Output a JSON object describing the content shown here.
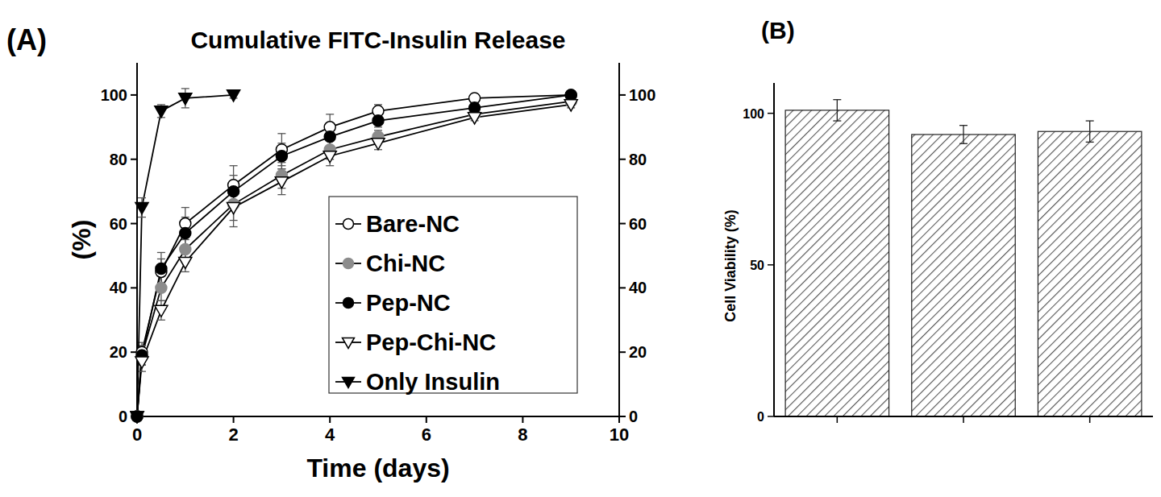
{
  "chart_data": [
    {
      "type": "line",
      "title": "Cumulative FITC-Insulin Release",
      "annotations": [
        "(A)"
      ],
      "x_label": "Time (days)",
      "y_label": "(%)",
      "x": [
        0,
        0.1,
        0.5,
        1,
        2,
        3,
        4,
        5,
        7,
        9
      ],
      "xlim": [
        0,
        10
      ],
      "xticks": [
        0,
        2,
        4,
        6,
        8,
        10
      ],
      "ylim": [
        0,
        110
      ],
      "yticks": [
        0,
        20,
        40,
        60,
        80,
        100
      ],
      "y2lim": [
        0,
        110
      ],
      "y2ticks": [
        0,
        20,
        40,
        60,
        80,
        100
      ],
      "legend": "lower right",
      "series": [
        {
          "name": "Bare-NC",
          "color": "#000000",
          "marker": "circle-open",
          "values": [
            0,
            20,
            45,
            60,
            72,
            83,
            90,
            95,
            99,
            100
          ],
          "errors": [
            0,
            3,
            4,
            5,
            6,
            5,
            4,
            2,
            1,
            1
          ]
        },
        {
          "name": "Chi-NC",
          "color": "#8c8c8c",
          "marker": "circle",
          "values": [
            0,
            19,
            40,
            52,
            66,
            75,
            83,
            87,
            94,
            98
          ],
          "errors": [
            0,
            3,
            4,
            4,
            5,
            4,
            3,
            2,
            1,
            1
          ]
        },
        {
          "name": "Pep-NC",
          "color": "#000000",
          "marker": "circle",
          "values": [
            0,
            19,
            46,
            57,
            70,
            81,
            87,
            92,
            96,
            100
          ],
          "errors": [
            0,
            3,
            5,
            5,
            5,
            4,
            3,
            2,
            1,
            1
          ]
        },
        {
          "name": "Pep-Chi-NC",
          "color": "#000000",
          "marker": "triangle-down-open",
          "values": [
            0,
            17,
            33,
            48,
            65,
            73,
            81,
            85,
            93,
            97
          ],
          "errors": [
            0,
            3,
            3,
            3,
            6,
            4,
            3,
            2,
            1,
            1
          ]
        },
        {
          "name": "Only Insulin",
          "color": "#000000",
          "marker": "triangle-down",
          "values": [
            0,
            65,
            95,
            99,
            100,
            null,
            null,
            null,
            null,
            null
          ],
          "errors": [
            0,
            3,
            2,
            3,
            1,
            null,
            null,
            null,
            null,
            null
          ]
        }
      ]
    },
    {
      "type": "bar",
      "title": "(B)",
      "y_label": "Cell Viability (%)",
      "categories": [
        null,
        null,
        null
      ],
      "values": [
        101,
        93,
        94
      ],
      "errors": [
        3.5,
        3,
        3.5
      ],
      "color": "#555555",
      "ylim": [
        0,
        110
      ],
      "yticks": [
        0,
        50,
        100
      ],
      "tick_labels": "y"
    }
  ]
}
